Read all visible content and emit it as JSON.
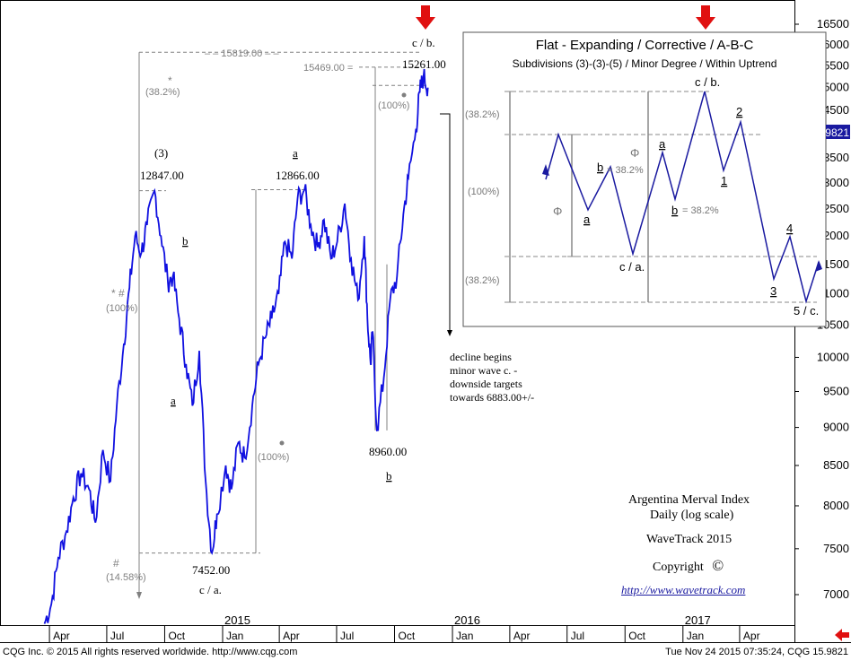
{
  "chart_data": {
    "type": "line",
    "title": "Argentina Merval Index",
    "subtitle": "Daily (log scale)",
    "scale": "log",
    "ylim": [
      6600,
      16800
    ],
    "y_ticks": [
      7000,
      7500,
      8000,
      8500,
      9000,
      9500,
      10000,
      10500,
      11000,
      11500,
      12000,
      12500,
      13000,
      13500,
      14000,
      14500,
      15000,
      15500,
      16000,
      16500
    ],
    "y_tick_labels": [
      "7000",
      "7500",
      "8000",
      "8500",
      "9000",
      "9500",
      "10000",
      "10500",
      "11000",
      "11500",
      "12000",
      "12500",
      "13000",
      "13500",
      "14000",
      "14500",
      "15000",
      "15500",
      "16000",
      "16500"
    ],
    "last_value_label": "15.9821",
    "x_month_labels": [
      "Apr",
      "Jul",
      "Oct",
      "Jan",
      "Apr",
      "Jul",
      "Oct",
      "Jan",
      "Apr",
      "Jul",
      "Oct",
      "Jan",
      "Apr"
    ],
    "x_year_labels": [
      "2015",
      "2016",
      "2017"
    ],
    "grid": false,
    "series": [
      {
        "color": "#1010e0",
        "x": [
          "2014-03-24",
          "2014-04-04",
          "2014-04-15",
          "2014-04-28",
          "2014-05-09",
          "2014-05-21",
          "2014-06-03",
          "2014-06-13",
          "2014-06-25",
          "2014-07-07",
          "2014-07-17",
          "2014-07-28",
          "2014-08-06",
          "2014-08-15",
          "2014-08-25",
          "2014-09-03",
          "2014-09-15",
          "2014-09-25",
          "2014-10-06",
          "2014-10-14",
          "2014-10-24",
          "2014-11-04",
          "2014-11-14",
          "2014-11-25",
          "2014-12-05",
          "2014-12-15",
          "2014-12-23",
          "2015-01-06",
          "2015-01-15",
          "2015-01-26",
          "2015-02-05",
          "2015-02-17",
          "2015-02-27",
          "2015-03-10",
          "2015-03-20",
          "2015-03-31",
          "2015-04-10",
          "2015-04-21",
          "2015-04-30",
          "2015-05-11",
          "2015-05-21",
          "2015-06-01",
          "2015-06-11",
          "2015-06-22",
          "2015-07-02",
          "2015-07-14",
          "2015-07-24",
          "2015-08-04",
          "2015-08-14",
          "2015-08-19",
          "2015-08-24",
          "2015-08-27",
          "2015-09-03",
          "2015-09-14",
          "2015-09-24",
          "2015-10-05",
          "2015-10-15",
          "2015-10-23",
          "2015-11-04",
          "2015-11-10",
          "2015-11-16",
          "2015-11-23"
        ],
        "values": [
          6700,
          6900,
          7400,
          7700,
          8100,
          8400,
          8200,
          7800,
          8700,
          8300,
          9300,
          10200,
          11100,
          12000,
          11700,
          12200,
          12847,
          12000,
          11200,
          11300,
          10600,
          9900,
          9300,
          10100,
          8300,
          7452,
          7900,
          8500,
          8200,
          8800,
          8600,
          9300,
          9900,
          10300,
          10600,
          11000,
          11900,
          11600,
          12700,
          12866,
          12200,
          11800,
          12300,
          11600,
          11900,
          12600,
          11600,
          10900,
          12000,
          10600,
          9900,
          10400,
          8960,
          9700,
          10900,
          11300,
          12400,
          13100,
          14100,
          14900,
          15261,
          15000
        ]
      }
    ],
    "price_labels": [
      "12847.00",
      "12866.00",
      "7452.00",
      "8960.00",
      "15261.00",
      "15469.00 =",
      "– – 15819.00 – –"
    ],
    "wave_labels": [
      "(3)",
      "a",
      "b",
      "a",
      "c / a.",
      "b",
      "c / b."
    ],
    "fib_labels": [
      "(38.2%)",
      "(100%)",
      "(100%)",
      "(100%)",
      "(14.58%)",
      "*",
      "* #",
      "#"
    ],
    "annotation_text": [
      "decline begins",
      "minor wave c. -",
      "downside targets",
      "towards 6883.00+/-"
    ],
    "inset": {
      "title": "Flat - Expanding / Corrective / A-B-C",
      "subtitle": "Subdivisions (3)-(3)-(5) / Minor Degree / Within Uptrend",
      "labels": [
        "(38.2%)",
        "(100%)",
        "(38.2%)",
        "c / b.",
        "a",
        "b",
        "b",
        "a",
        "c / a.",
        "1",
        "2",
        "3",
        "4",
        "5 / c."
      ],
      "ratio_labels": [
        "= 38.2%",
        "= 38.2%"
      ],
      "phi_labels": [
        "Φ",
        "Φ"
      ]
    },
    "info": {
      "line1": "Argentina Merval Index",
      "line2": "Daily (log scale)",
      "line3": "WaveTrack 2015",
      "line4": "Copyright",
      "copyright_symbol": "©",
      "link": "http://www.wavetrack.com"
    }
  },
  "footer": {
    "left": "CQG Inc. © 2015 All rights reserved worldwide. http://www.cqg.com",
    "right": "Tue Nov 24 2015 07:35:24, CQG 15.9821"
  },
  "colors": {
    "price_line": "#1010e0",
    "arrow_red": "#e01010",
    "guide_gray": "#808080",
    "value_badge": "#1a1aa0"
  }
}
